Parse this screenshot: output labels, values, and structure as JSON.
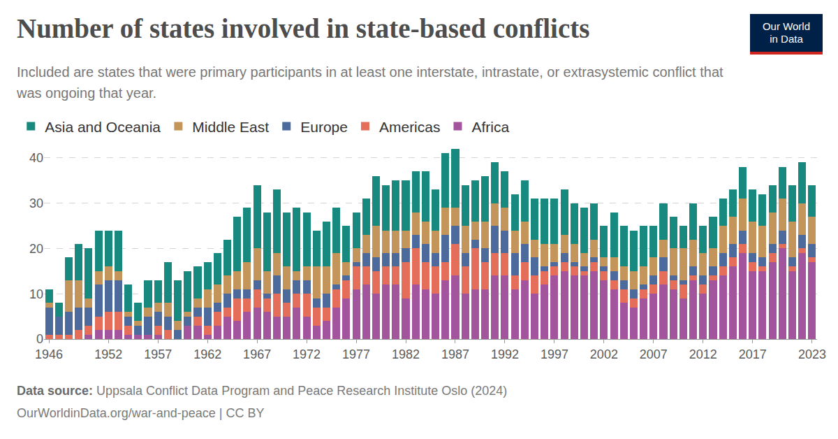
{
  "chart_data": {
    "type": "bar",
    "stacked": true,
    "title": "Number of states involved in state-based conflicts",
    "subtitle": "Included are states that were primary participants in at least one interstate, intrastate, or extrasystemic conflict that was ongoing that year.",
    "source_label": "Data source:",
    "source": "Uppsala Conflict Data Program and Peace Research Institute Oslo (2024)",
    "url": "OurWorldinData.org/war-and-peace | CC BY",
    "logo": [
      "Our World",
      "in Data"
    ],
    "legend": "top",
    "grid": true,
    "x": [
      1946,
      1947,
      1948,
      1949,
      1950,
      1951,
      1952,
      1953,
      1954,
      1955,
      1956,
      1957,
      1958,
      1959,
      1960,
      1961,
      1962,
      1963,
      1964,
      1965,
      1966,
      1967,
      1968,
      1969,
      1970,
      1971,
      1972,
      1973,
      1974,
      1975,
      1976,
      1977,
      1978,
      1979,
      1980,
      1981,
      1982,
      1983,
      1984,
      1985,
      1986,
      1987,
      1988,
      1989,
      1990,
      1991,
      1992,
      1993,
      1994,
      1995,
      1996,
      1997,
      1998,
      1999,
      2000,
      2001,
      2002,
      2003,
      2004,
      2005,
      2006,
      2007,
      2008,
      2009,
      2010,
      2011,
      2012,
      2013,
      2014,
      2015,
      2016,
      2017,
      2018,
      2019,
      2020,
      2021,
      2022,
      2023
    ],
    "xlim": [
      1945.5,
      2023.5
    ],
    "xticks": [
      1946,
      1952,
      1957,
      1962,
      1967,
      1972,
      1977,
      1982,
      1987,
      1992,
      1997,
      2002,
      2007,
      2012,
      2017,
      2023
    ],
    "ylim": [
      0,
      42
    ],
    "yticks": [
      0,
      10,
      20,
      30,
      40
    ],
    "series": [
      {
        "name": "Africa",
        "color": "#a2559c",
        "values": [
          0,
          0,
          0,
          0,
          1,
          2,
          2,
          2,
          1,
          1,
          1,
          1,
          0,
          0,
          3,
          3,
          1,
          3,
          5,
          4,
          6,
          7,
          6,
          5,
          5,
          7,
          5,
          3,
          4,
          7,
          9,
          11,
          12,
          10,
          12,
          12,
          9,
          12,
          11,
          10,
          13,
          14,
          10,
          11,
          11,
          14,
          14,
          11,
          13,
          10,
          12,
          14,
          15,
          14,
          14,
          15,
          13,
          11,
          8,
          7,
          9,
          10,
          12,
          11,
          9,
          13,
          10,
          13,
          14,
          16,
          19,
          15,
          15,
          17,
          20,
          15,
          19,
          17
        ]
      },
      {
        "name": "Americas",
        "color": "#e56e5a",
        "values": [
          1,
          1,
          1,
          2,
          2,
          3,
          4,
          4,
          2,
          0,
          0,
          2,
          2,
          0,
          0,
          2,
          2,
          3,
          2,
          5,
          3,
          4,
          3,
          5,
          3,
          3,
          5,
          4,
          3,
          4,
          4,
          5,
          4,
          5,
          4,
          4,
          8,
          8,
          6,
          6,
          4,
          7,
          6,
          9,
          6,
          5,
          5,
          3,
          4,
          4,
          3,
          2,
          2,
          2,
          1,
          2,
          2,
          2,
          3,
          2,
          2,
          2,
          3,
          2,
          3,
          1,
          2,
          1,
          2,
          2,
          2,
          2,
          1,
          2,
          1,
          1,
          1,
          1
        ]
      },
      {
        "name": "Europe",
        "color": "#4c6a9c",
        "values": [
          6,
          4,
          5,
          5,
          4,
          7,
          7,
          7,
          2,
          2,
          4,
          3,
          3,
          2,
          2,
          2,
          4,
          2,
          3,
          2,
          2,
          2,
          1,
          4,
          3,
          3,
          3,
          2,
          3,
          1,
          1,
          1,
          3,
          3,
          3,
          3,
          3,
          3,
          4,
          3,
          6,
          4,
          3,
          2,
          3,
          6,
          5,
          5,
          4,
          4,
          1,
          1,
          2,
          1,
          1,
          1,
          1,
          2,
          2,
          2,
          1,
          2,
          3,
          1,
          1,
          2,
          2,
          2,
          3,
          3,
          3,
          2,
          2,
          2,
          3,
          2,
          3,
          3
        ]
      },
      {
        "name": "Middle East",
        "color": "#c4955b",
        "values": [
          1,
          0,
          7,
          6,
          2,
          3,
          3,
          2,
          1,
          1,
          2,
          2,
          3,
          2,
          1,
          2,
          4,
          4,
          4,
          4,
          6,
          7,
          5,
          5,
          5,
          2,
          3,
          7,
          6,
          7,
          3,
          3,
          4,
          7,
          5,
          5,
          4,
          5,
          5,
          5,
          6,
          4,
          6,
          4,
          6,
          5,
          5,
          5,
          5,
          4,
          5,
          4,
          4,
          4,
          3,
          4,
          2,
          3,
          3,
          4,
          4,
          4,
          4,
          6,
          7,
          6,
          5,
          4,
          6,
          6,
          7,
          7,
          7,
          7,
          7,
          8,
          7,
          6
        ]
      },
      {
        "name": "Asia and Oceania",
        "color": "#18897f",
        "values": [
          3,
          3,
          5,
          8,
          11,
          9,
          8,
          9,
          6,
          4,
          6,
          5,
          9,
          9,
          9,
          7,
          6,
          7,
          8,
          12,
          12,
          14,
          13,
          14,
          12,
          14,
          12,
          8,
          10,
          10,
          8,
          8,
          8,
          11,
          10,
          11,
          11,
          9,
          11,
          9,
          12,
          13,
          9,
          9,
          10,
          9,
          8,
          8,
          9,
          9,
          10,
          10,
          10,
          9,
          10,
          8,
          7,
          10,
          9,
          9,
          9,
          7,
          8,
          7,
          5,
          8,
          6,
          7,
          6,
          6,
          7,
          7,
          7,
          6,
          7,
          8,
          9,
          7
        ]
      }
    ]
  }
}
